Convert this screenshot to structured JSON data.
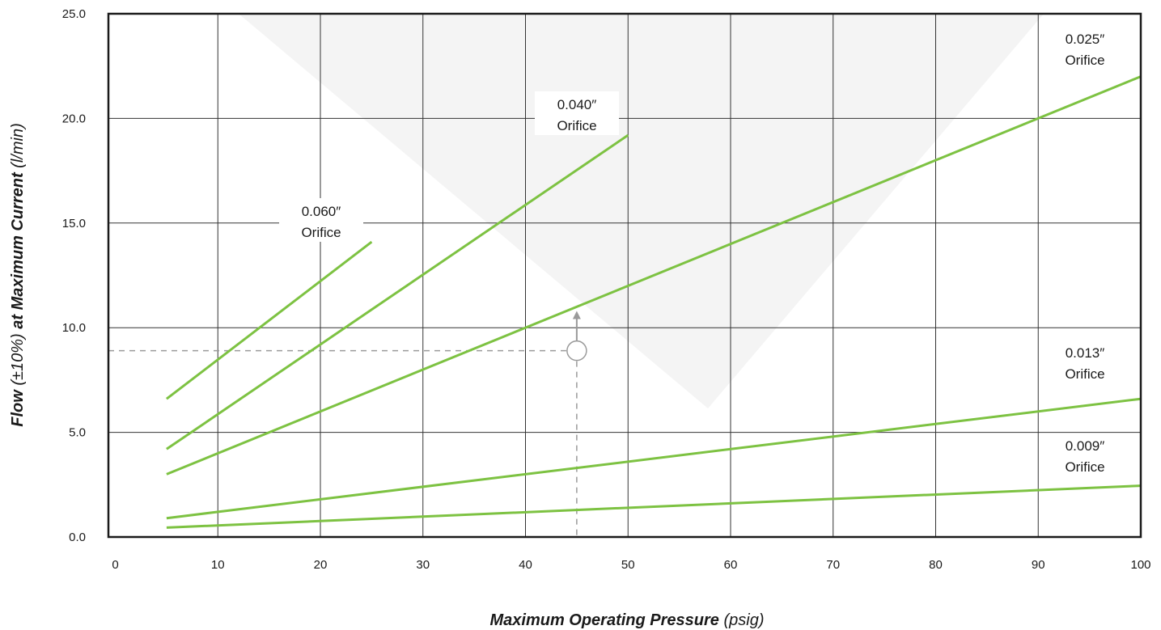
{
  "chart_data": {
    "type": "line",
    "xlabel": {
      "bold": "Maximum Operating Pressure",
      "normal": " (psig)"
    },
    "ylabel": {
      "bold1": "Flow",
      "normal1": " (±10%) ",
      "bold2": "at Maximum Current",
      "normal2": " (l/min)"
    },
    "xlim": [
      0,
      100
    ],
    "ylim": [
      0,
      25
    ],
    "x_ticks": [
      0,
      10,
      20,
      30,
      40,
      50,
      60,
      70,
      80,
      90,
      100
    ],
    "x_tick_labels": [
      "0",
      "10",
      "20",
      "30",
      "40",
      "50",
      "60",
      "70",
      "80",
      "90",
      "100"
    ],
    "y_ticks": [
      0,
      5,
      10,
      15,
      20,
      25
    ],
    "y_tick_labels": [
      "0.0",
      "5.0",
      "10.0",
      "15.0",
      "20.0",
      "25.0"
    ],
    "grid": true,
    "line_color": "#7dc242",
    "series": [
      {
        "name": "0.060″ Orifice",
        "label_lines": [
          "0.060″",
          "Orifice"
        ],
        "x": [
          5,
          25
        ],
        "y": [
          6.6,
          14.1
        ]
      },
      {
        "name": "0.040″ Orifice",
        "label_lines": [
          "0.040″",
          "Orifice"
        ],
        "x": [
          5,
          50
        ],
        "y": [
          4.2,
          19.2
        ]
      },
      {
        "name": "0.025″ Orifice",
        "label_lines": [
          "0.025″",
          "Orifice"
        ],
        "x": [
          5,
          100
        ],
        "y": [
          3.0,
          22.0
        ]
      },
      {
        "name": "0.013″ Orifice",
        "label_lines": [
          "0.013″",
          "Orifice"
        ],
        "x": [
          5,
          100
        ],
        "y": [
          0.9,
          6.6
        ]
      },
      {
        "name": "0.009″ Orifice",
        "label_lines": [
          "0.009″",
          "Orifice"
        ],
        "x": [
          5,
          100
        ],
        "y": [
          0.45,
          2.45
        ]
      }
    ],
    "annotation": {
      "type": "example-lookup",
      "x": 45,
      "y": 8.9,
      "arrow_to_y": 10.8
    }
  }
}
